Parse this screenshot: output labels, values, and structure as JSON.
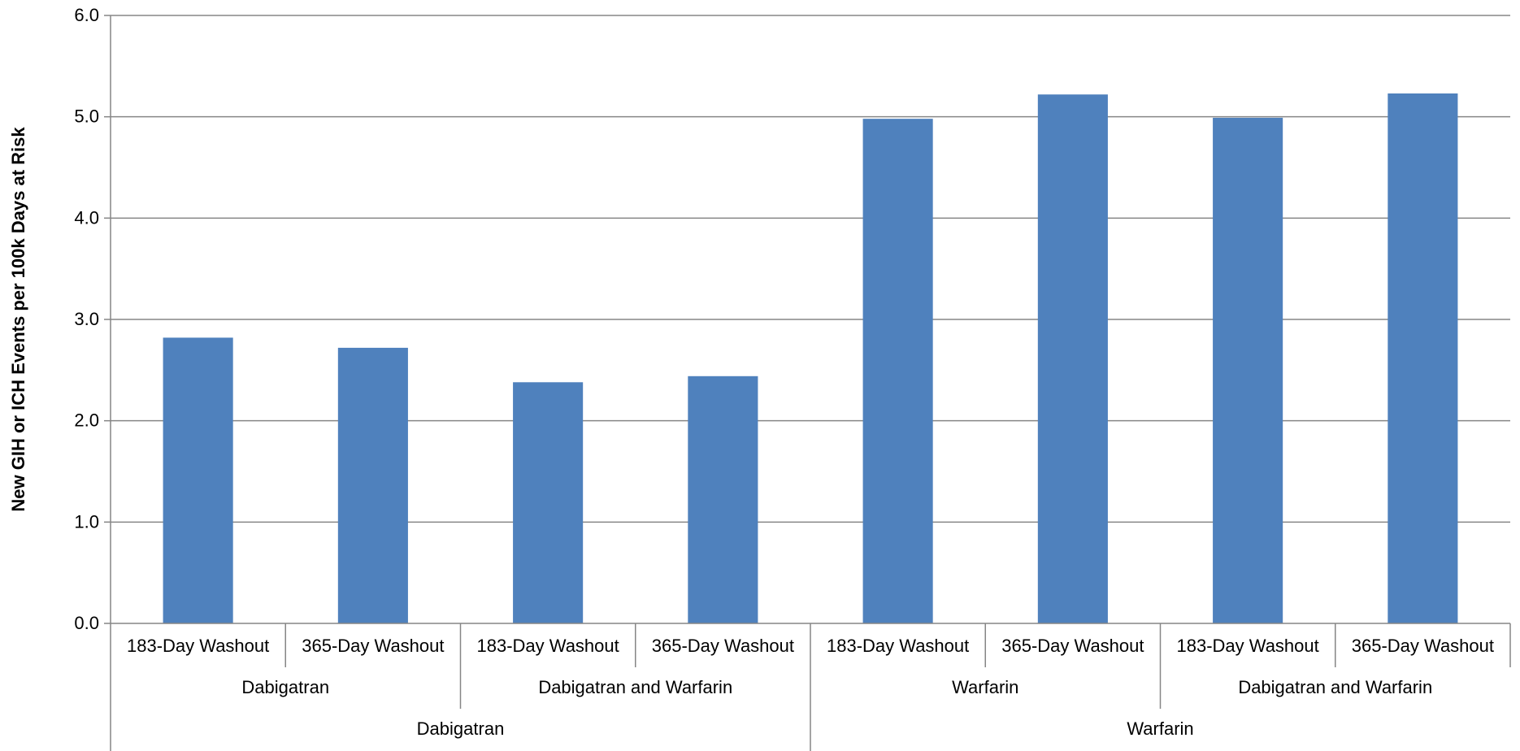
{
  "chart_data": {
    "type": "bar",
    "title": "",
    "xlabel": "",
    "ylabel": "New GIH or ICH Events per 100k Days at Risk",
    "ylim": [
      0,
      6
    ],
    "yticks": [
      "0.0",
      "1.0",
      "2.0",
      "3.0",
      "4.0",
      "5.0",
      "6.0"
    ],
    "grid": true,
    "legend": "none",
    "bar_color": "#4f81bd",
    "categories": [
      "183-Day Washout",
      "365-Day Washout",
      "183-Day Washout",
      "365-Day Washout",
      "183-Day Washout",
      "365-Day Washout",
      "183-Day Washout",
      "365-Day Washout"
    ],
    "values": [
      2.82,
      2.72,
      2.38,
      2.44,
      4.98,
      5.22,
      4.99,
      5.23
    ],
    "group_level2": [
      {
        "label": "Dabigatran",
        "span": 2
      },
      {
        "label": "Dabigatran and Warfarin",
        "span": 2
      },
      {
        "label": "Warfarin",
        "span": 2
      },
      {
        "label": "Dabigatran and Warfarin",
        "span": 2
      }
    ],
    "group_level1": [
      {
        "label": "Dabigatran",
        "span": 4
      },
      {
        "label": "Warfarin",
        "span": 4
      }
    ]
  }
}
